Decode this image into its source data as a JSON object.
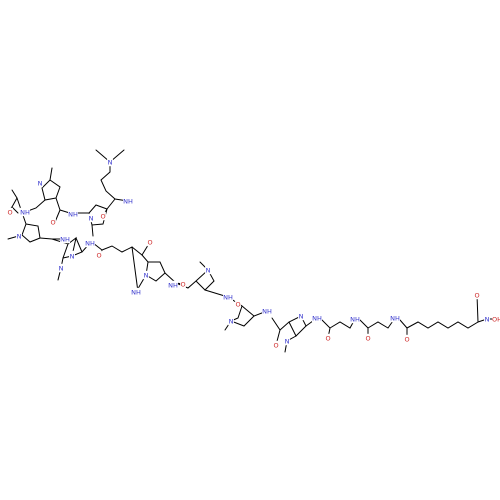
{
  "colors": {
    "background": "#ffffff",
    "bond": "#000000",
    "N": "#3333cc",
    "O": "#cc2222"
  },
  "labels": [
    {
      "id": "nme2-N",
      "text": "N",
      "element": "N"
    },
    {
      "id": "a1-NH",
      "text": "NH",
      "element": "N"
    },
    {
      "id": "a1-O",
      "text": "O",
      "element": "O"
    },
    {
      "id": "p1-N",
      "text": "N",
      "element": "N"
    },
    {
      "id": "a2-NH",
      "text": "NH",
      "element": "N"
    },
    {
      "id": "a2-O",
      "text": "O",
      "element": "O"
    },
    {
      "id": "p2-N",
      "text": "N",
      "element": "N"
    },
    {
      "id": "a3-NH",
      "text": "NH",
      "element": "N"
    },
    {
      "id": "a3-O",
      "text": "O",
      "element": "O"
    },
    {
      "id": "p3-N",
      "text": "N",
      "element": "N"
    },
    {
      "id": "a4-NH",
      "text": "NH",
      "element": "N"
    },
    {
      "id": "a4-O",
      "text": "O",
      "element": "O"
    },
    {
      "id": "im1-N3",
      "text": "N",
      "element": "N"
    },
    {
      "id": "im1-N1",
      "text": "N",
      "element": "N"
    },
    {
      "id": "a5-NH",
      "text": "NH",
      "element": "N"
    },
    {
      "id": "a5-O",
      "text": "O",
      "element": "O"
    },
    {
      "id": "a6-NH",
      "text": "NH",
      "element": "N"
    },
    {
      "id": "a6-O",
      "text": "O",
      "element": "O"
    },
    {
      "id": "p4-N",
      "text": "N",
      "element": "N"
    },
    {
      "id": "a7-NH",
      "text": "NH",
      "element": "N"
    },
    {
      "id": "a7-O",
      "text": "O",
      "element": "O"
    },
    {
      "id": "p5-N",
      "text": "N",
      "element": "N"
    },
    {
      "id": "a8-NH",
      "text": "NH",
      "element": "N"
    },
    {
      "id": "a8-O",
      "text": "O",
      "element": "O"
    },
    {
      "id": "p6-N",
      "text": "N",
      "element": "N"
    },
    {
      "id": "a9-NH",
      "text": "NH",
      "element": "N"
    },
    {
      "id": "a9-O",
      "text": "O",
      "element": "O"
    },
    {
      "id": "im2-N3",
      "text": "N",
      "element": "N"
    },
    {
      "id": "im2-N1",
      "text": "N",
      "element": "N"
    },
    {
      "id": "a10-NH",
      "text": "NH",
      "element": "N"
    },
    {
      "id": "a10-O",
      "text": "O",
      "element": "O"
    },
    {
      "id": "a11-NH",
      "text": "NH",
      "element": "N"
    },
    {
      "id": "a11-O",
      "text": "O",
      "element": "O"
    },
    {
      "id": "a12-NH",
      "text": "NH",
      "element": "N"
    },
    {
      "id": "a12-O",
      "text": "O",
      "element": "O"
    },
    {
      "id": "ha-O",
      "text": "O",
      "element": "O"
    },
    {
      "id": "ha-NH",
      "text": "N",
      "element": "N"
    },
    {
      "id": "ha-OH",
      "text": "OH",
      "element": "O"
    }
  ]
}
